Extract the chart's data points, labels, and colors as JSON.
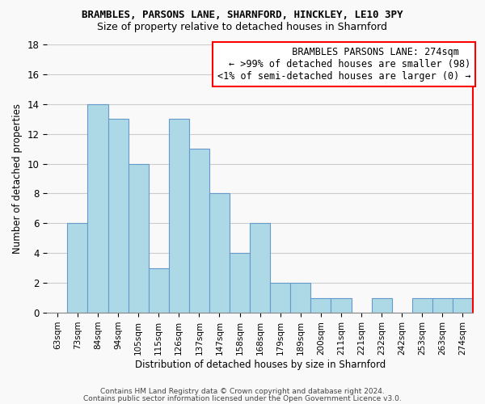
{
  "title": "BRAMBLES, PARSONS LANE, SHARNFORD, HINCKLEY, LE10 3PY",
  "subtitle": "Size of property relative to detached houses in Sharnford",
  "xlabel": "Distribution of detached houses by size in Sharnford",
  "ylabel": "Number of detached properties",
  "bin_labels": [
    "63sqm",
    "73sqm",
    "84sqm",
    "94sqm",
    "105sqm",
    "115sqm",
    "126sqm",
    "137sqm",
    "147sqm",
    "158sqm",
    "168sqm",
    "179sqm",
    "189sqm",
    "200sqm",
    "211sqm",
    "221sqm",
    "232sqm",
    "242sqm",
    "253sqm",
    "263sqm",
    "274sqm"
  ],
  "bar_values": [
    0,
    6,
    14,
    13,
    10,
    3,
    13,
    11,
    8,
    4,
    6,
    2,
    2,
    1,
    1,
    0,
    1,
    0,
    1,
    1,
    1
  ],
  "bar_color": "#add8e6",
  "bar_edge_color": "#6699cc",
  "highlight_index": 20,
  "annotation_text": "  BRAMBLES PARSONS LANE: 274sqm  \n← >99% of detached houses are smaller (98)\n<1% of semi-detached houses are larger (0) →",
  "annotation_box_edge_color": "red",
  "annotation_fontsize": 8.5,
  "ylim": [
    0,
    18
  ],
  "yticks": [
    0,
    2,
    4,
    6,
    8,
    10,
    12,
    14,
    16,
    18
  ],
  "background_color": "#f9f9f9",
  "grid_color": "#cccccc",
  "footer_text1": "Contains HM Land Registry data © Crown copyright and database right 2024.",
  "footer_text2": "Contains public sector information licensed under the Open Government Licence v3.0.",
  "title_fontsize": 9,
  "subtitle_fontsize": 9,
  "axis_label_fontsize": 8.5,
  "tick_fontsize": 7.5
}
